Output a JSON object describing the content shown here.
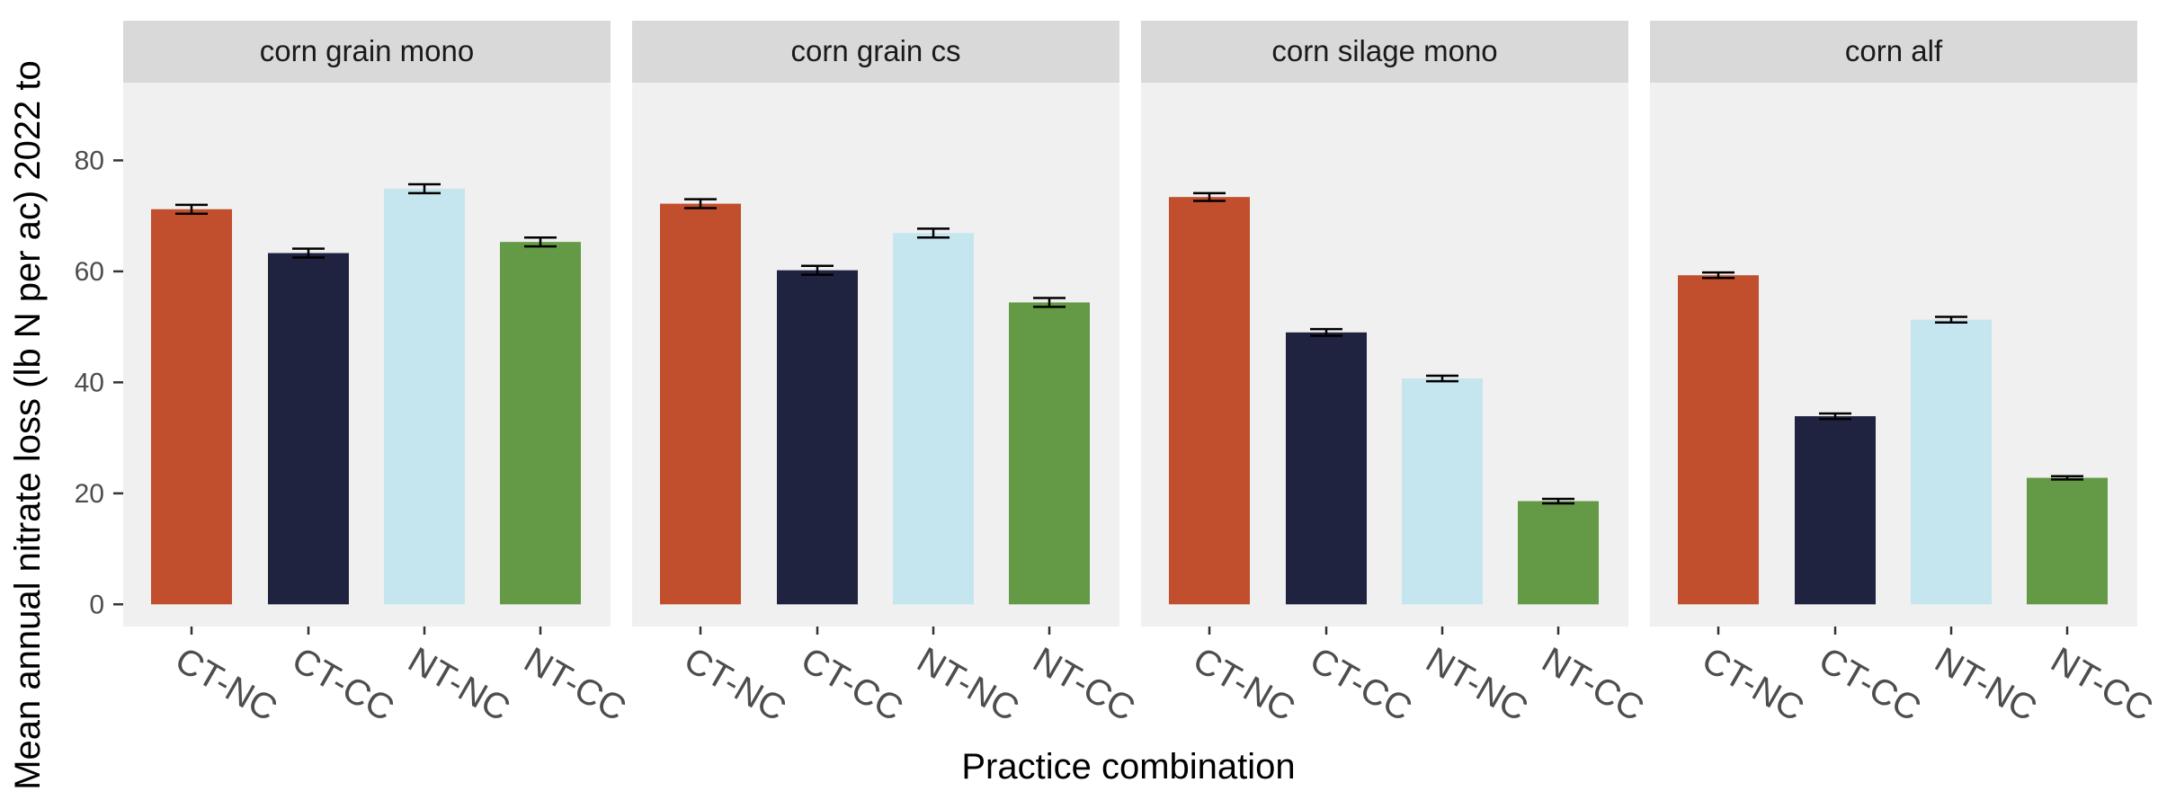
{
  "chart_data": {
    "type": "bar",
    "xlabel": "Practice combination",
    "ylabel": "Mean annual nitrate loss (lb N per ac) 2022 to",
    "ylim": [
      -4,
      94
    ],
    "yticks": [
      0,
      20,
      40,
      60,
      80
    ],
    "categories": [
      "CT-NC",
      "CT-CC",
      "NT-NC",
      "NT-CC"
    ],
    "colors": [
      "#C14F2D",
      "#1F2340",
      "#C5E5EF",
      "#649946"
    ],
    "grid": false,
    "legend": "none",
    "error_bars": true,
    "facets": [
      {
        "name": "corn grain mono",
        "values": [
          71.2,
          63.3,
          74.9,
          65.3
        ],
        "error": [
          0.8,
          0.8,
          0.8,
          0.8
        ]
      },
      {
        "name": "corn grain cs",
        "values": [
          72.2,
          60.2,
          66.9,
          54.4
        ],
        "error": [
          0.8,
          0.8,
          0.8,
          0.8
        ]
      },
      {
        "name": "corn silage mono",
        "values": [
          73.4,
          49.0,
          40.7,
          18.6
        ],
        "error": [
          0.7,
          0.6,
          0.5,
          0.4
        ]
      },
      {
        "name": "corn alf",
        "values": [
          59.3,
          33.9,
          51.3,
          22.8
        ],
        "error": [
          0.5,
          0.5,
          0.5,
          0.3
        ]
      }
    ]
  }
}
